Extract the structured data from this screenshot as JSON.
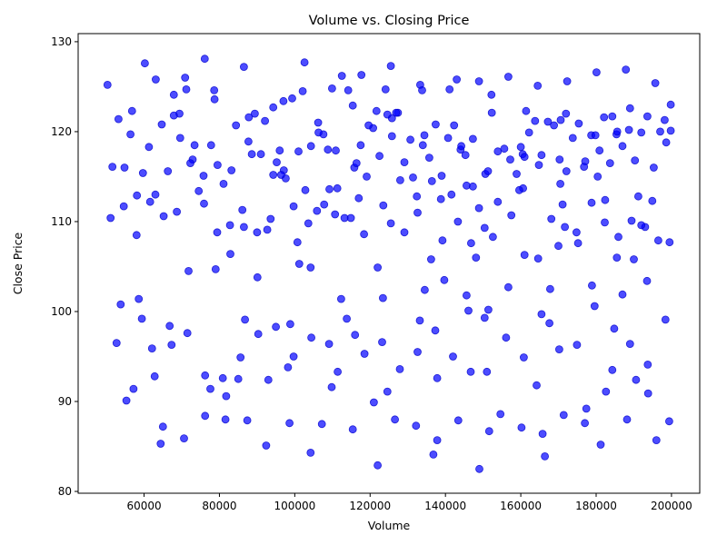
{
  "chart_data": {
    "type": "scatter",
    "title": "Volume vs. Closing Price",
    "xlabel": "Volume",
    "ylabel": "Close Price",
    "xlim": [
      42500,
      207500
    ],
    "ylim": [
      79.8,
      130.9
    ],
    "xticks": [
      {
        "value": 60000,
        "label": "60000"
      },
      {
        "value": 80000,
        "label": "80000"
      },
      {
        "value": 100000,
        "label": "100000"
      },
      {
        "value": 120000,
        "label": "120000"
      },
      {
        "value": 140000,
        "label": "140000"
      },
      {
        "value": 160000,
        "label": "160000"
      },
      {
        "value": 180000,
        "label": "180000"
      },
      {
        "value": 200000,
        "label": "200000"
      }
    ],
    "yticks": [
      {
        "value": 80,
        "label": "80"
      },
      {
        "value": 90,
        "label": "90"
      },
      {
        "value": 100,
        "label": "100"
      },
      {
        "value": 110,
        "label": "110"
      },
      {
        "value": 120,
        "label": "120"
      },
      {
        "value": 130,
        "label": "130"
      }
    ],
    "grid": false,
    "legend": "none",
    "marker_color": "#0000ff",
    "marker_alpha": 0.7,
    "marker_edge_color": "#0000cc",
    "points_x": [
      50300,
      51600,
      53200,
      54800,
      56400,
      58100,
      59700,
      61300,
      63000,
      64700,
      66300,
      67900,
      69600,
      71200,
      72900,
      74500,
      76100,
      77800,
      79500,
      81100,
      82800,
      84400,
      86100,
      87700,
      89400,
      91000,
      92700,
      94300,
      96000,
      97600,
      99300,
      101000,
      102600,
      104300,
      105900,
      107600,
      109200,
      110900,
      112500,
      114200,
      115800,
      117500,
      119100,
      120800,
      122500,
      124100,
      125800,
      127400,
      129100,
      130700,
      132400,
      134000,
      135700,
      137400,
      139000,
      140700,
      142300,
      144000,
      145600,
      147300,
      148900,
      150600,
      152300,
      153900,
      155600,
      157200,
      158900,
      160500,
      162200,
      163800,
      165500,
      167200,
      168800,
      170500,
      172100,
      173800,
      175400,
      177100,
      178700,
      180400,
      182100,
      183700,
      185400,
      187000,
      188700,
      190300,
      192000,
      193600,
      195300,
      197000,
      198600,
      199800,
      51100,
      54600,
      58000,
      61600,
      65200,
      68700,
      72300,
      75800,
      79400,
      82900,
      86500,
      90000,
      93600,
      97100,
      100700,
      104200,
      107800,
      111300,
      114900,
      118400,
      122000,
      125500,
      129100,
      132600,
      136200,
      139700,
      143300,
      146800,
      150400,
      153900,
      157500,
      161000,
      164600,
      168100,
      171700,
      175200,
      178800,
      182300,
      185900,
      189400,
      193000,
      196500,
      199500,
      52700,
      57200,
      62100,
      66800,
      71500,
      76200,
      80900,
      85600,
      90300,
      95000,
      99700,
      104400,
      109100,
      113800,
      118500,
      123200,
      127900,
      132600,
      137300,
      142000,
      146700,
      151400,
      156100,
      160800,
      165500,
      170200,
      174900,
      179600,
      184300,
      189000,
      193700,
      198400,
      53800,
      59400,
      65000,
      70600,
      76200,
      81800,
      87400,
      93000,
      98600,
      104200,
      109800,
      115400,
      121000,
      126600,
      132200,
      137800,
      143400,
      149000,
      154600,
      160200,
      165800,
      171400,
      177000,
      182600,
      188200,
      193800,
      199400,
      55300,
      63100,
      70900,
      78700,
      86500,
      94300,
      102100,
      109900,
      117700,
      125500,
      133300,
      141100,
      148900,
      156700,
      164500,
      172300,
      180100,
      187900,
      195700,
      60200,
      69400,
      78600,
      87800,
      97000,
      106200,
      115400,
      124600,
      133800,
      143000,
      152200,
      161400,
      170600,
      179800,
      189000,
      198200,
      56800,
      67900,
      79000,
      90100,
      101200,
      112300,
      123400,
      134500,
      145600,
      156700,
      167800,
      178900,
      190000,
      58600,
      71800,
      85000,
      98200,
      111400,
      124600,
      137800,
      151000,
      164200,
      177400,
      190600,
      62800,
      77600,
      92400,
      107200,
      122000,
      136800,
      151600,
      166400,
      181200,
      196000,
      64400,
      81600,
      98800,
      116000,
      133200,
      150400,
      167600,
      184800,
      67300,
      86800,
      106300,
      125800,
      145300,
      164800,
      184300,
      73400,
      95200,
      117000,
      138800,
      160600,
      182400,
      75900,
      99700,
      123500,
      147300,
      171100,
      194900,
      83200,
      108800,
      134400,
      160000,
      185600,
      88600,
      116400,
      144200,
      172000,
      199800,
      92100,
      121700,
      151300,
      180900,
      96400,
      128000,
      159600,
      191200,
      102800,
      136400,
      170000,
      103600,
      139200,
      174800,
      110700,
      148100,
      185500,
      113200,
      152600,
      192000,
      119600,
      161000,
      126900,
      170300,
      131400,
      176800,
      141600,
      187000,
      146100,
      193500
    ],
    "points_y": [
      125.2,
      116.1,
      121.4,
      116.0,
      119.7,
      112.9,
      115.4,
      118.3,
      113.0,
      120.8,
      115.6,
      124.1,
      119.3,
      124.7,
      116.9,
      113.4,
      128.1,
      118.5,
      116.3,
      114.2,
      109.6,
      120.7,
      111.3,
      118.9,
      122.0,
      117.5,
      109.1,
      115.2,
      117.9,
      114.8,
      123.7,
      117.8,
      127.7,
      118.4,
      111.2,
      119.7,
      113.6,
      117.9,
      126.2,
      124.6,
      116.0,
      118.5,
      115.0,
      120.4,
      117.3,
      124.7,
      121.5,
      122.1,
      116.6,
      119.1,
      112.8,
      118.5,
      117.1,
      120.8,
      115.1,
      119.3,
      120.7,
      118.0,
      114.0,
      119.2,
      111.5,
      115.3,
      122.1,
      117.8,
      118.1,
      116.9,
      115.3,
      117.5,
      119.9,
      121.2,
      117.4,
      121.1,
      120.7,
      114.2,
      115.6,
      119.3,
      120.9,
      116.7,
      119.6,
      115.0,
      121.6,
      116.5,
      119.7,
      118.4,
      120.2,
      116.8,
      119.9,
      121.7,
      116.0,
      120.0,
      118.8,
      120.1,
      110.4,
      111.7,
      108.5,
      112.2,
      110.6,
      111.1,
      116.5,
      115.1,
      108.8,
      106.4,
      109.4,
      108.8,
      110.3,
      115.7,
      107.7,
      104.9,
      111.9,
      113.7,
      110.4,
      108.6,
      104.9,
      109.8,
      108.8,
      111.0,
      105.8,
      103.5,
      110.0,
      107.6,
      109.3,
      112.2,
      110.7,
      106.3,
      105.9,
      110.3,
      109.4,
      107.6,
      112.1,
      109.9,
      108.3,
      110.1,
      109.4,
      107.9,
      107.7,
      96.5,
      91.4,
      95.9,
      98.4,
      97.6,
      92.9,
      92.6,
      94.9,
      97.5,
      98.3,
      95.0,
      97.1,
      96.4,
      99.2,
      95.3,
      96.6,
      93.6,
      95.5,
      97.9,
      95.0,
      93.3,
      100.2,
      97.1,
      94.9,
      99.7,
      95.8,
      96.3,
      100.6,
      93.5,
      96.4,
      94.1,
      99.1,
      100.8,
      99.2,
      87.2,
      85.9,
      88.4,
      90.6,
      87.9,
      92.4,
      87.6,
      84.3,
      91.6,
      86.9,
      89.9,
      88.0,
      87.3,
      85.7,
      87.9,
      82.5,
      88.6,
      87.1,
      86.4,
      88.5,
      87.6,
      91.1,
      88.0,
      90.9,
      87.8,
      90.1,
      125.8,
      126.0,
      123.6,
      127.2,
      122.7,
      124.5,
      124.8,
      126.3,
      127.3,
      125.2,
      124.7,
      125.6,
      126.1,
      125.1,
      125.6,
      126.6,
      126.9,
      125.4,
      127.6,
      122.0,
      124.6,
      121.6,
      123.4,
      121.0,
      122.9,
      121.9,
      124.6,
      125.8,
      124.1,
      122.3,
      121.3,
      119.6,
      122.6,
      121.3,
      122.3,
      121.8,
      104.7,
      103.8,
      105.3,
      101.4,
      101.5,
      102.4,
      101.8,
      102.7,
      102.5,
      102.9,
      105.8,
      101.4,
      104.5,
      92.5,
      93.8,
      93.3,
      91.1,
      92.6,
      93.3,
      91.8,
      89.2,
      92.4,
      92.8,
      91.4,
      85.1,
      87.5,
      82.9,
      84.1,
      86.7,
      83.9,
      85.2,
      85.7,
      85.3,
      88.0,
      98.6,
      97.4,
      99.0,
      99.3,
      98.7,
      98.1,
      96.3,
      99.1,
      119.9,
      119.5,
      117.4,
      116.3,
      121.7,
      118.5,
      116.6,
      112.6,
      112.5,
      113.7,
      112.4,
      112.0,
      111.7,
      111.8,
      113.9,
      111.9,
      112.3,
      115.7,
      118.0,
      119.6,
      118.3,
      120.0,
      117.5,
      116.5,
      118.4,
      122.0,
      123.0,
      121.2,
      122.3,
      115.6,
      117.9,
      115.2,
      114.6,
      113.5,
      112.8,
      113.5,
      114.5,
      107.3,
      109.8,
      107.9,
      108.8,
      110.8,
      106.0,
      106.0,
      110.4,
      108.3,
      109.6,
      120.7,
      117.2,
      122.1,
      116.9,
      114.9,
      116.1,
      113.0,
      101.9,
      100.1,
      103.4
    ]
  }
}
